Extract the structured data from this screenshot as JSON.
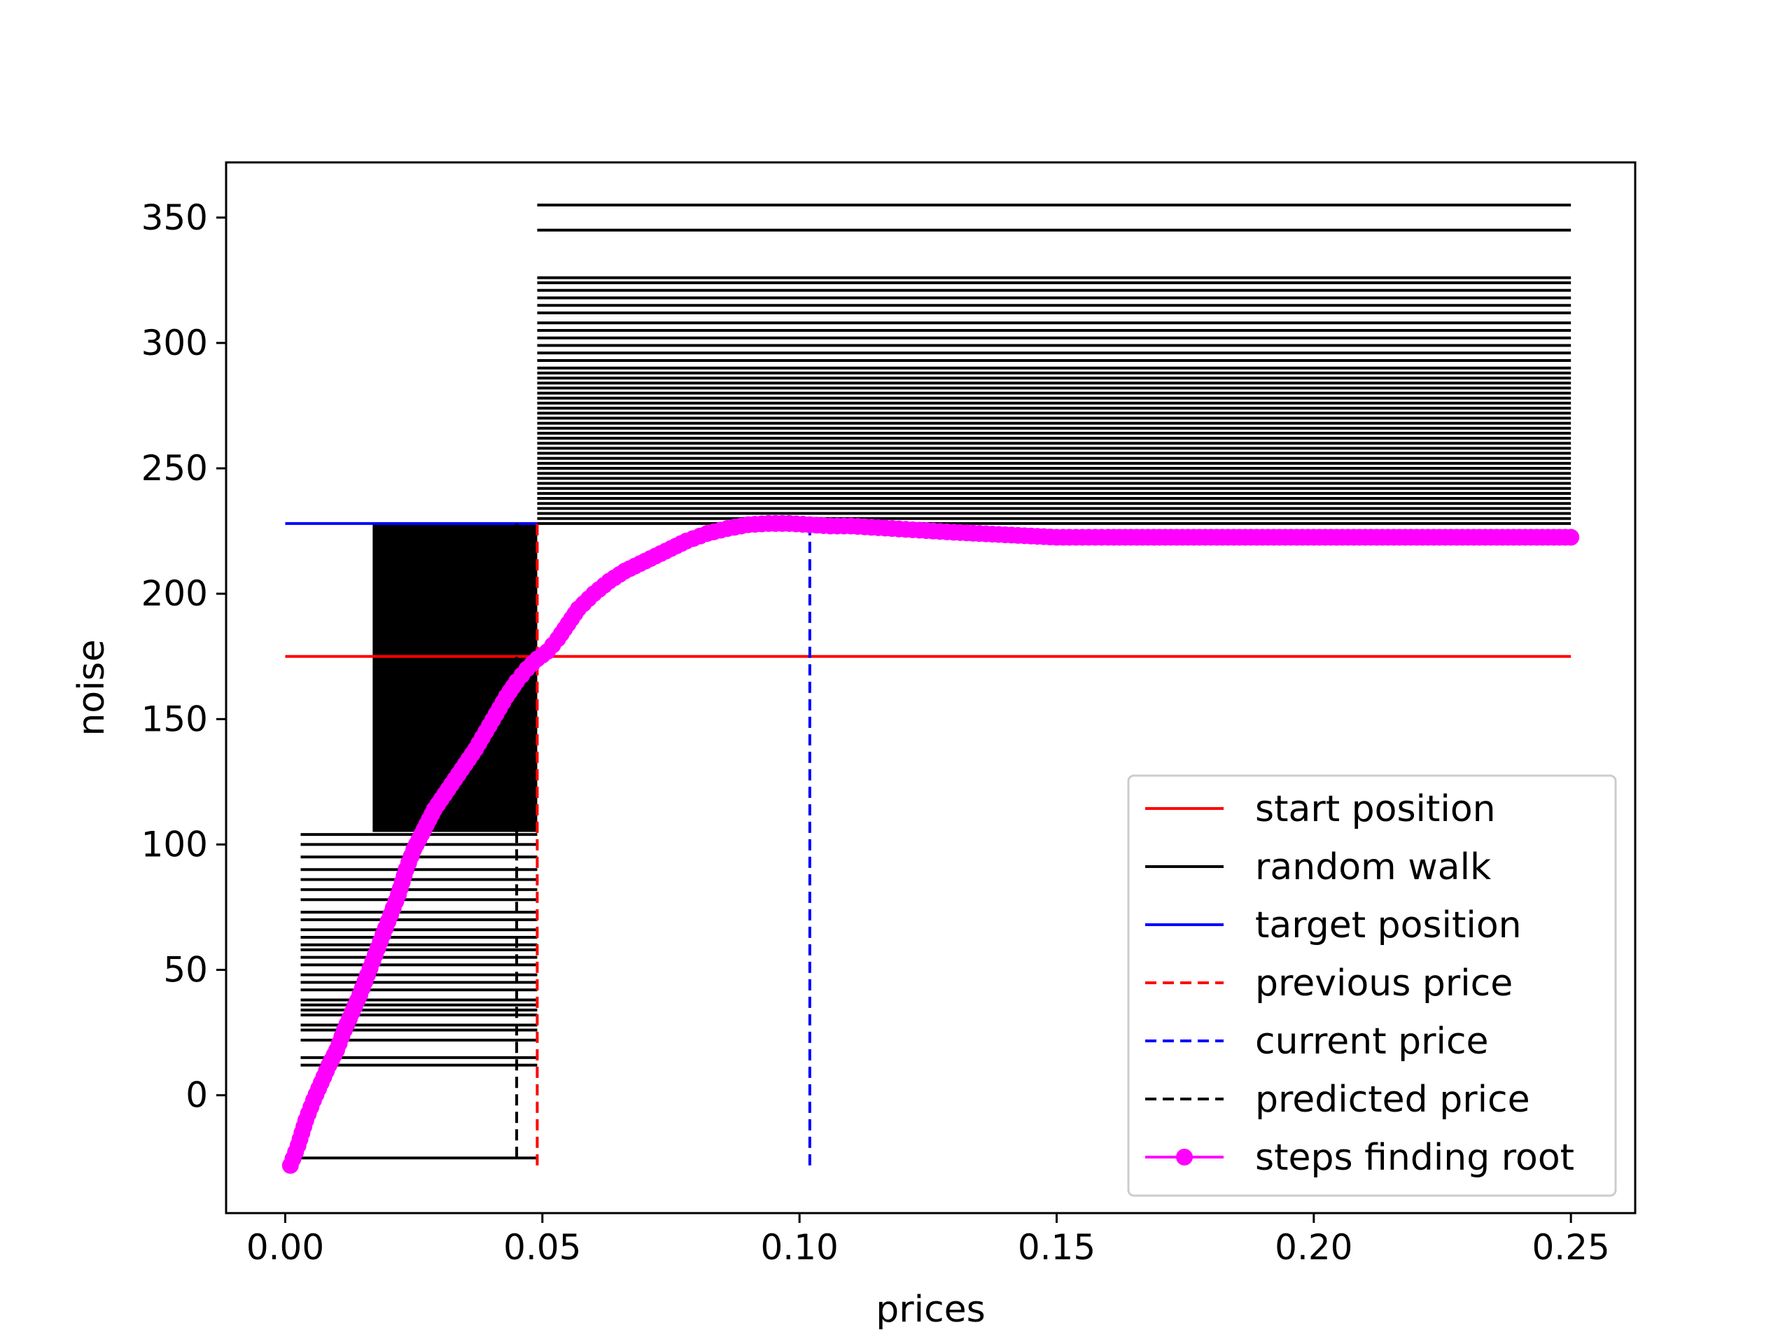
{
  "chart_data": {
    "type": "line",
    "title": "",
    "xlabel": "prices",
    "ylabel": "noise",
    "xlim": [
      -0.0115,
      0.2625
    ],
    "ylim": [
      -47,
      372
    ],
    "x_ticks": [
      0.0,
      0.05,
      0.1,
      0.15,
      0.2,
      0.25
    ],
    "x_tick_labels": [
      "0.00",
      "0.05",
      "0.10",
      "0.15",
      "0.20",
      "0.25"
    ],
    "y_ticks": [
      0,
      50,
      100,
      150,
      200,
      250,
      300,
      350
    ],
    "y_tick_labels": [
      "0",
      "50",
      "100",
      "150",
      "200",
      "250",
      "300",
      "350"
    ],
    "grid": false,
    "legend_position": "lower-right",
    "legend": [
      {
        "label": "start position",
        "color": "#ff0000",
        "style": "solid",
        "marker": false
      },
      {
        "label": "random walk",
        "color": "#000000",
        "style": "solid",
        "marker": false
      },
      {
        "label": "target position",
        "color": "#0000ff",
        "style": "solid",
        "marker": false
      },
      {
        "label": "previous price",
        "color": "#ff0000",
        "style": "dashed",
        "marker": false
      },
      {
        "label": "current price",
        "color": "#0000ff",
        "style": "dashed",
        "marker": false
      },
      {
        "label": "predicted price",
        "color": "#000000",
        "style": "dashed",
        "marker": false
      },
      {
        "label": "steps finding root",
        "color": "#ff00ff",
        "style": "solid",
        "marker": true
      }
    ],
    "start_position": {
      "y": 175,
      "x_range": [
        0.0,
        0.25
      ]
    },
    "target_position": {
      "y": 228,
      "x_range": [
        0.0,
        0.049
      ]
    },
    "previous_price": {
      "x": 0.049,
      "y_range": [
        -28,
        228
      ]
    },
    "current_price": {
      "x": 0.102,
      "y_range": [
        -28,
        228
      ]
    },
    "predicted_price": {
      "x": 0.045,
      "y_range": [
        -25,
        228
      ]
    },
    "random_walk": {
      "lower_x_range": [
        0.003,
        0.049
      ],
      "lower_y_values": [
        -25,
        12,
        15,
        22,
        26,
        28,
        32,
        34,
        36,
        38,
        42,
        45,
        48,
        52,
        55,
        58,
        60,
        63,
        66,
        70,
        73,
        78,
        82,
        86,
        90,
        95,
        100,
        104
      ],
      "upper_x_range": [
        0.049,
        0.25
      ],
      "upper_y_values": [
        355,
        345,
        326,
        324,
        321,
        318,
        315,
        312,
        308,
        305,
        302,
        299,
        296,
        293,
        290,
        288,
        286,
        284,
        282,
        280,
        278,
        276,
        274,
        272,
        270,
        268,
        266,
        264,
        262,
        260,
        258,
        256,
        254,
        252,
        250,
        248,
        246,
        244,
        242,
        240,
        238,
        236,
        234,
        232,
        230,
        228
      ],
      "filled_band_y": [
        105,
        228
      ]
    },
    "steps_finding_root": {
      "x": [
        0.001,
        0.0025,
        0.004,
        0.0055,
        0.007,
        0.0085,
        0.01,
        0.0115,
        0.013,
        0.0145,
        0.016,
        0.0175,
        0.019,
        0.0205,
        0.022,
        0.0235,
        0.025,
        0.027,
        0.029,
        0.031,
        0.033,
        0.035,
        0.037,
        0.039,
        0.041,
        0.043,
        0.045,
        0.047,
        0.049,
        0.051,
        0.053,
        0.055,
        0.057,
        0.06,
        0.063,
        0.066,
        0.07,
        0.074,
        0.078,
        0.082,
        0.086,
        0.09,
        0.094,
        0.098,
        0.102,
        0.106,
        0.11,
        0.114,
        0.118,
        0.122,
        0.126,
        0.13,
        0.135,
        0.14,
        0.145,
        0.15,
        0.155,
        0.16,
        0.17,
        0.18,
        0.19,
        0.2,
        0.21,
        0.22,
        0.23,
        0.24,
        0.25
      ],
      "y": [
        -28,
        -20,
        -10,
        -2,
        5,
        12,
        18,
        26,
        33,
        40,
        48,
        56,
        64,
        72,
        80,
        90,
        98,
        106,
        114,
        120,
        126,
        132,
        138,
        145,
        152,
        159,
        165,
        170,
        174,
        177,
        182,
        188,
        194,
        200,
        205,
        209,
        213,
        217,
        221,
        224,
        226,
        227.5,
        228,
        228,
        227.5,
        227,
        227,
        226.5,
        226,
        225.5,
        225,
        224.5,
        224,
        223.5,
        223,
        222.5,
        222.5,
        222.5,
        222.5,
        222.5,
        222.5,
        222.5,
        222.5,
        222.5,
        222.5,
        222.5,
        222.5
      ]
    }
  }
}
